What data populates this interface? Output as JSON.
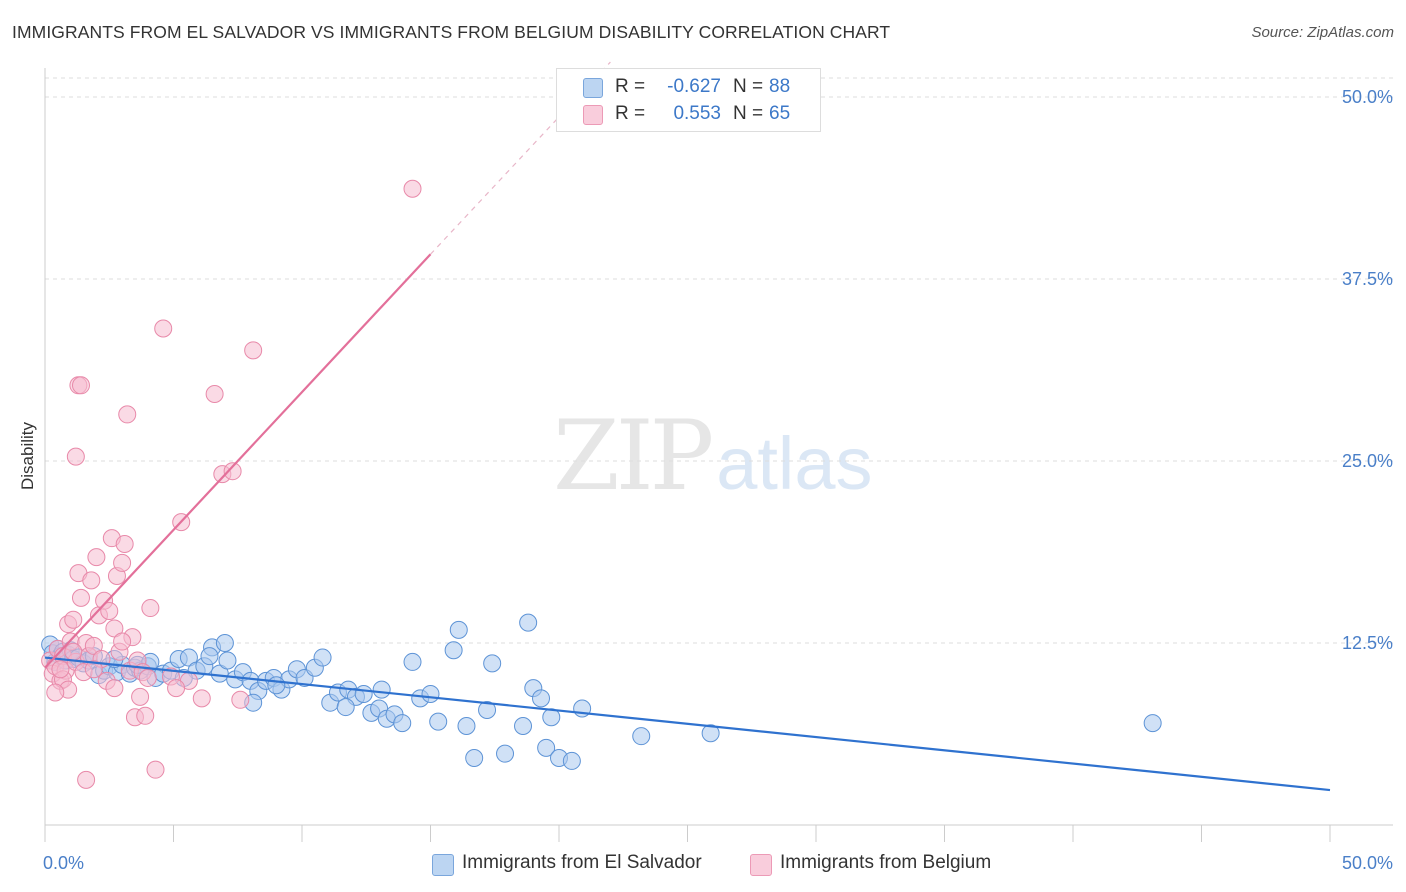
{
  "header": {
    "title": "IMMIGRANTS FROM EL SALVADOR VS IMMIGRANTS FROM BELGIUM DISABILITY CORRELATION CHART",
    "source": "Source: ZipAtlas.com"
  },
  "watermark": {
    "zip": "ZIP",
    "atlas": "atlas"
  },
  "colors": {
    "blue_fill": "#a9c8ee",
    "blue_stroke": "#5d93d6",
    "blue_line": "#2f72cf",
    "pink_fill": "#f6bcd0",
    "pink_stroke": "#e889a9",
    "pink_line": "#e3709a",
    "grid": "#dddddd",
    "label": "#4a7fc8"
  },
  "legend": {
    "rows": [
      {
        "r_label": "R =",
        "r_value": "-0.627",
        "n_label": "N =",
        "n_value": "88"
      },
      {
        "r_label": "R =",
        "r_value": "0.553",
        "n_label": "N =",
        "n_value": "65"
      }
    ]
  },
  "bottom_legend": {
    "series1": "Immigrants from El Salvador",
    "series2": "Immigrants from Belgium"
  },
  "chart_data": {
    "type": "scatter",
    "title": "IMMIGRANTS FROM EL SALVADOR VS IMMIGRANTS FROM BELGIUM DISABILITY CORRELATION CHART",
    "xlabel": "",
    "ylabel": "Disability",
    "xlim": [
      0,
      50
    ],
    "ylim": [
      0,
      50
    ],
    "x_tick_labels": [
      "0.0%",
      "50.0%"
    ],
    "y_ticks": [
      12.5,
      25.0,
      37.5,
      50.0
    ],
    "y_tick_labels": [
      "12.5%",
      "25.0%",
      "37.5%",
      "50.0%"
    ],
    "grid": true,
    "legend_position": "top-center",
    "series": [
      {
        "name": "Immigrants from El Salvador",
        "color": "#a9c8ee",
        "R": -0.627,
        "N": 88,
        "trend": {
          "x": [
            0,
            50
          ],
          "y": [
            11.5,
            2.4
          ]
        },
        "points": [
          [
            0.2,
            12.4
          ],
          [
            0.3,
            11.8
          ],
          [
            0.4,
            11.2
          ],
          [
            0.5,
            12.1
          ],
          [
            0.6,
            11.6
          ],
          [
            0.7,
            11.9
          ],
          [
            0.8,
            11.3
          ],
          [
            0.9,
            11.7
          ],
          [
            1.0,
            12.0
          ],
          [
            1.1,
            11.4
          ],
          [
            1.3,
            11.5
          ],
          [
            1.5,
            11.1
          ],
          [
            1.7,
            11.3
          ],
          [
            1.9,
            11.6
          ],
          [
            2.1,
            10.3
          ],
          [
            2.3,
            10.6
          ],
          [
            2.5,
            10.9
          ],
          [
            2.8,
            10.5
          ],
          [
            3.0,
            11.0
          ],
          [
            3.3,
            10.4
          ],
          [
            3.5,
            10.8
          ],
          [
            3.7,
            10.6
          ],
          [
            4.0,
            10.9
          ],
          [
            4.3,
            10.1
          ],
          [
            4.6,
            10.4
          ],
          [
            4.9,
            10.6
          ],
          [
            5.2,
            11.4
          ],
          [
            5.6,
            11.5
          ],
          [
            5.9,
            10.6
          ],
          [
            6.2,
            10.9
          ],
          [
            6.5,
            12.2
          ],
          [
            6.8,
            10.4
          ],
          [
            7.1,
            11.3
          ],
          [
            7.4,
            10.0
          ],
          [
            7.7,
            10.5
          ],
          [
            8.0,
            9.9
          ],
          [
            8.3,
            9.2
          ],
          [
            8.6,
            9.9
          ],
          [
            8.9,
            10.1
          ],
          [
            9.2,
            9.3
          ],
          [
            9.5,
            10.0
          ],
          [
            9.8,
            10.7
          ],
          [
            10.1,
            10.1
          ],
          [
            10.5,
            10.8
          ],
          [
            10.8,
            11.5
          ],
          [
            11.1,
            8.4
          ],
          [
            11.4,
            9.1
          ],
          [
            11.8,
            9.3
          ],
          [
            12.1,
            8.8
          ],
          [
            12.4,
            9.0
          ],
          [
            12.7,
            7.7
          ],
          [
            13.0,
            8.0
          ],
          [
            13.3,
            7.3
          ],
          [
            13.6,
            7.6
          ],
          [
            13.9,
            7.0
          ],
          [
            14.3,
            11.2
          ],
          [
            14.6,
            8.7
          ],
          [
            15.0,
            9.0
          ],
          [
            15.3,
            7.1
          ],
          [
            15.9,
            12.0
          ],
          [
            16.1,
            13.4
          ],
          [
            16.4,
            6.8
          ],
          [
            16.7,
            4.6
          ],
          [
            17.2,
            7.9
          ],
          [
            17.4,
            11.1
          ],
          [
            17.9,
            4.9
          ],
          [
            18.6,
            6.8
          ],
          [
            18.8,
            13.9
          ],
          [
            19.0,
            9.4
          ],
          [
            19.3,
            8.7
          ],
          [
            19.5,
            5.3
          ],
          [
            19.7,
            7.4
          ],
          [
            20.0,
            4.6
          ],
          [
            20.5,
            4.4
          ],
          [
            20.9,
            8.0
          ],
          [
            23.2,
            6.1
          ],
          [
            25.9,
            6.3
          ],
          [
            43.1,
            7.0
          ],
          [
            3.6,
            11.0
          ],
          [
            7.0,
            12.5
          ],
          [
            6.4,
            11.6
          ],
          [
            5.4,
            10.1
          ],
          [
            4.1,
            11.2
          ],
          [
            2.7,
            11.4
          ],
          [
            9.0,
            9.6
          ],
          [
            8.1,
            8.4
          ],
          [
            11.7,
            8.1
          ],
          [
            13.1,
            9.3
          ]
        ]
      },
      {
        "name": "Immigrants from Belgium",
        "color": "#f6bcd0",
        "R": 0.553,
        "N": 65,
        "trend": {
          "x": [
            0,
            15
          ],
          "y": [
            10.8,
            39.2
          ],
          "dashed_extension": {
            "x": [
              15,
              22
            ],
            "y": [
              39.2,
              52.4
            ]
          }
        },
        "points": [
          [
            0.2,
            11.3
          ],
          [
            0.3,
            10.4
          ],
          [
            0.4,
            10.9
          ],
          [
            0.5,
            12.1
          ],
          [
            0.6,
            9.9
          ],
          [
            0.7,
            11.6
          ],
          [
            0.8,
            10.6
          ],
          [
            0.9,
            13.8
          ],
          [
            1.0,
            12.6
          ],
          [
            1.1,
            14.1
          ],
          [
            1.2,
            11.2
          ],
          [
            1.3,
            17.3
          ],
          [
            1.4,
            15.6
          ],
          [
            1.5,
            10.5
          ],
          [
            1.6,
            12.5
          ],
          [
            1.7,
            11.6
          ],
          [
            1.8,
            16.8
          ],
          [
            1.9,
            12.3
          ],
          [
            2.0,
            18.4
          ],
          [
            2.1,
            14.4
          ],
          [
            2.2,
            11.4
          ],
          [
            2.3,
            15.4
          ],
          [
            2.4,
            9.9
          ],
          [
            2.5,
            14.7
          ],
          [
            2.6,
            19.7
          ],
          [
            2.7,
            13.5
          ],
          [
            2.8,
            17.1
          ],
          [
            2.9,
            11.9
          ],
          [
            3.0,
            18.0
          ],
          [
            3.1,
            19.3
          ],
          [
            3.2,
            28.2
          ],
          [
            3.3,
            10.6
          ],
          [
            3.4,
            12.9
          ],
          [
            3.5,
            7.4
          ],
          [
            3.6,
            11.3
          ],
          [
            3.7,
            8.8
          ],
          [
            3.8,
            10.5
          ],
          [
            3.9,
            7.5
          ],
          [
            4.0,
            10.1
          ],
          [
            4.1,
            14.9
          ],
          [
            4.3,
            3.8
          ],
          [
            4.6,
            34.1
          ],
          [
            4.9,
            10.2
          ],
          [
            5.3,
            20.8
          ],
          [
            5.6,
            9.9
          ],
          [
            6.1,
            8.7
          ],
          [
            6.6,
            29.6
          ],
          [
            6.9,
            24.1
          ],
          [
            7.3,
            24.3
          ],
          [
            7.6,
            8.6
          ],
          [
            8.1,
            32.6
          ],
          [
            1.2,
            25.3
          ],
          [
            1.3,
            30.2
          ],
          [
            1.4,
            30.2
          ],
          [
            1.6,
            3.1
          ],
          [
            14.3,
            43.7
          ],
          [
            0.7,
            10.0
          ],
          [
            0.9,
            9.3
          ],
          [
            1.1,
            11.9
          ],
          [
            2.7,
            9.4
          ],
          [
            0.4,
            9.1
          ],
          [
            0.6,
            10.7
          ],
          [
            1.9,
            10.7
          ],
          [
            3.0,
            12.6
          ],
          [
            5.1,
            9.4
          ]
        ]
      }
    ]
  }
}
